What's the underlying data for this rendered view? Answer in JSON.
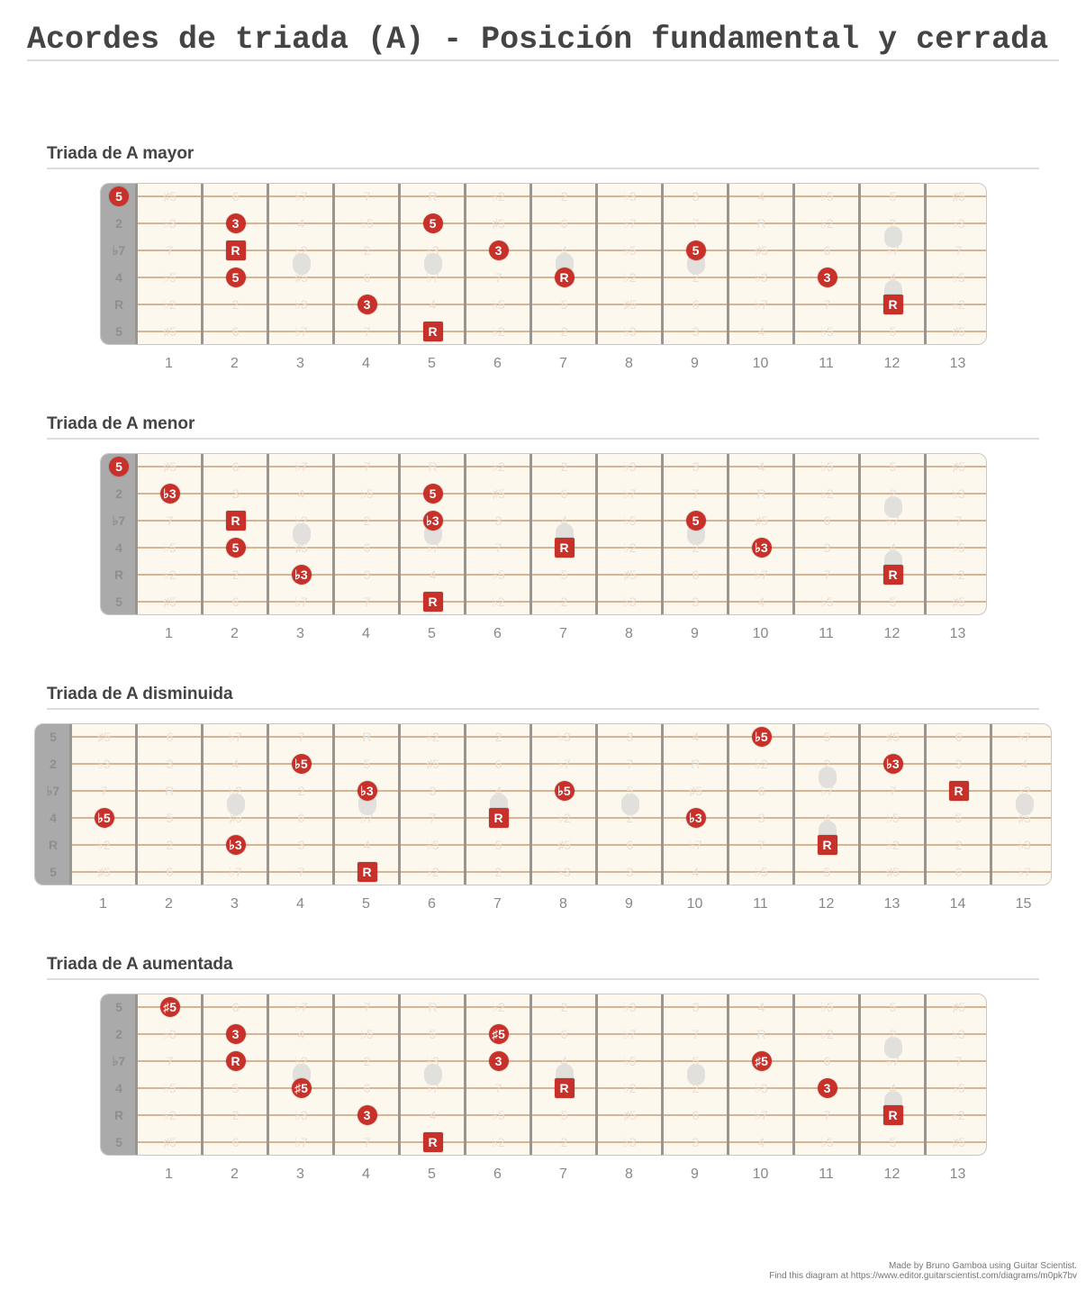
{
  "title": "Acordes de triada (A) - Posición fundamental y cerrada",
  "colors": {
    "note": "#c8302a",
    "fretboard": "#fdf8ee",
    "string": "#d7b494",
    "fret": "#9a958f",
    "nut": "#aaaaaa"
  },
  "open_string_labels": [
    "5",
    "2",
    "♭7",
    "4",
    "R",
    "5"
  ],
  "fret_labels": [
    [
      "♯5",
      "6",
      "♭7",
      "7",
      "R",
      "♭2",
      "2",
      "♭3",
      "3",
      "4",
      "♭5",
      "5",
      "♯5",
      "6",
      "♭7"
    ],
    [
      "♭3",
      "3",
      "4",
      "♭5",
      "5",
      "♯5",
      "6",
      "♭7",
      "7",
      "R",
      "♭2",
      "2",
      "♭3",
      "3",
      "4"
    ],
    [
      "7",
      "R",
      "♭2",
      "2",
      "♭3",
      "3",
      "4",
      "♭5",
      "5",
      "♯5",
      "6",
      "♭7",
      "7",
      "R",
      "♭2"
    ],
    [
      "♭5",
      "5",
      "♯5",
      "6",
      "♭7",
      "7",
      "R",
      "♭2",
      "2",
      "♭3",
      "3",
      "4",
      "♭5",
      "5",
      "♯5"
    ],
    [
      "♭2",
      "2",
      "♭3",
      "3",
      "4",
      "♭5",
      "5",
      "♯5",
      "6",
      "♭7",
      "7",
      "R",
      "♭2",
      "2",
      "♭3"
    ],
    [
      "♯5",
      "6",
      "♭7",
      "7",
      "R",
      "♭2",
      "2",
      "♭3",
      "3",
      "4",
      "♭5",
      "5",
      "♯5",
      "6",
      "♭7"
    ]
  ],
  "fret_markers": {
    "single": [
      3,
      5,
      7,
      9,
      15
    ],
    "double": [
      12
    ]
  },
  "diagrams": [
    {
      "title": "Triada de A mayor",
      "frets": 13,
      "fret_numbers": [
        "1",
        "2",
        "3",
        "4",
        "5",
        "6",
        "7",
        "8",
        "9",
        "10",
        "11",
        "12",
        "13"
      ],
      "notes": [
        {
          "string": 1,
          "fret": 0,
          "label": "5",
          "shape": "circle"
        },
        {
          "string": 2,
          "fret": 2,
          "label": "3",
          "shape": "circle"
        },
        {
          "string": 3,
          "fret": 2,
          "label": "R",
          "shape": "square"
        },
        {
          "string": 4,
          "fret": 2,
          "label": "5",
          "shape": "circle"
        },
        {
          "string": 5,
          "fret": 4,
          "label": "3",
          "shape": "circle"
        },
        {
          "string": 2,
          "fret": 5,
          "label": "5",
          "shape": "circle"
        },
        {
          "string": 6,
          "fret": 5,
          "label": "R",
          "shape": "square"
        },
        {
          "string": 3,
          "fret": 6,
          "label": "3",
          "shape": "circle"
        },
        {
          "string": 4,
          "fret": 7,
          "label": "R",
          "shape": "circle"
        },
        {
          "string": 3,
          "fret": 9,
          "label": "5",
          "shape": "circle"
        },
        {
          "string": 4,
          "fret": 11,
          "label": "3",
          "shape": "circle"
        },
        {
          "string": 5,
          "fret": 12,
          "label": "R",
          "shape": "square"
        }
      ]
    },
    {
      "title": "Triada de A menor",
      "frets": 13,
      "fret_numbers": [
        "1",
        "2",
        "3",
        "4",
        "5",
        "6",
        "7",
        "8",
        "9",
        "10",
        "11",
        "12",
        "13"
      ],
      "notes": [
        {
          "string": 1,
          "fret": 0,
          "label": "5",
          "shape": "circle"
        },
        {
          "string": 2,
          "fret": 1,
          "label": "♭3",
          "shape": "circle"
        },
        {
          "string": 3,
          "fret": 2,
          "label": "R",
          "shape": "square"
        },
        {
          "string": 4,
          "fret": 2,
          "label": "5",
          "shape": "circle"
        },
        {
          "string": 5,
          "fret": 3,
          "label": "♭3",
          "shape": "circle"
        },
        {
          "string": 2,
          "fret": 5,
          "label": "5",
          "shape": "circle"
        },
        {
          "string": 3,
          "fret": 5,
          "label": "♭3",
          "shape": "circle"
        },
        {
          "string": 6,
          "fret": 5,
          "label": "R",
          "shape": "square"
        },
        {
          "string": 4,
          "fret": 7,
          "label": "R",
          "shape": "square"
        },
        {
          "string": 3,
          "fret": 9,
          "label": "5",
          "shape": "circle"
        },
        {
          "string": 4,
          "fret": 10,
          "label": "♭3",
          "shape": "circle"
        },
        {
          "string": 5,
          "fret": 12,
          "label": "R",
          "shape": "square"
        }
      ]
    },
    {
      "title": "Triada de A disminuida",
      "frets": 15,
      "fret_numbers": [
        "1",
        "2",
        "3",
        "4",
        "5",
        "6",
        "7",
        "8",
        "9",
        "10",
        "11",
        "12",
        "13",
        "14",
        "15"
      ],
      "notes": [
        {
          "string": 4,
          "fret": 1,
          "label": "♭5",
          "shape": "circle"
        },
        {
          "string": 5,
          "fret": 3,
          "label": "♭3",
          "shape": "circle"
        },
        {
          "string": 2,
          "fret": 4,
          "label": "♭5",
          "shape": "circle"
        },
        {
          "string": 3,
          "fret": 5,
          "label": "♭3",
          "shape": "circle"
        },
        {
          "string": 6,
          "fret": 5,
          "label": "R",
          "shape": "square"
        },
        {
          "string": 4,
          "fret": 7,
          "label": "R",
          "shape": "square"
        },
        {
          "string": 3,
          "fret": 8,
          "label": "♭5",
          "shape": "circle"
        },
        {
          "string": 4,
          "fret": 10,
          "label": "♭3",
          "shape": "circle"
        },
        {
          "string": 1,
          "fret": 11,
          "label": "♭5",
          "shape": "circle"
        },
        {
          "string": 5,
          "fret": 12,
          "label": "R",
          "shape": "square"
        },
        {
          "string": 2,
          "fret": 13,
          "label": "♭3",
          "shape": "circle"
        },
        {
          "string": 3,
          "fret": 14,
          "label": "R",
          "shape": "square"
        }
      ]
    },
    {
      "title": "Triada de A aumentada",
      "frets": 13,
      "fret_numbers": [
        "1",
        "2",
        "3",
        "4",
        "5",
        "6",
        "7",
        "8",
        "9",
        "10",
        "11",
        "12",
        "13"
      ],
      "notes": [
        {
          "string": 1,
          "fret": 1,
          "label": "♯5",
          "shape": "circle"
        },
        {
          "string": 2,
          "fret": 2,
          "label": "3",
          "shape": "circle"
        },
        {
          "string": 3,
          "fret": 2,
          "label": "R",
          "shape": "circle"
        },
        {
          "string": 4,
          "fret": 3,
          "label": "♯5",
          "shape": "circle"
        },
        {
          "string": 5,
          "fret": 4,
          "label": "3",
          "shape": "circle"
        },
        {
          "string": 6,
          "fret": 5,
          "label": "R",
          "shape": "square"
        },
        {
          "string": 2,
          "fret": 6,
          "label": "♯5",
          "shape": "circle"
        },
        {
          "string": 3,
          "fret": 6,
          "label": "3",
          "shape": "circle"
        },
        {
          "string": 4,
          "fret": 7,
          "label": "R",
          "shape": "square"
        },
        {
          "string": 3,
          "fret": 10,
          "label": "♯5",
          "shape": "circle"
        },
        {
          "string": 4,
          "fret": 11,
          "label": "3",
          "shape": "circle"
        },
        {
          "string": 5,
          "fret": 12,
          "label": "R",
          "shape": "square"
        }
      ]
    }
  ],
  "footer": {
    "line1": "Made by Bruno Gamboa using Guitar Scientist.",
    "line2": "Find this diagram at https://www.editor.guitarscientist.com/diagrams/m0pk7bv"
  }
}
